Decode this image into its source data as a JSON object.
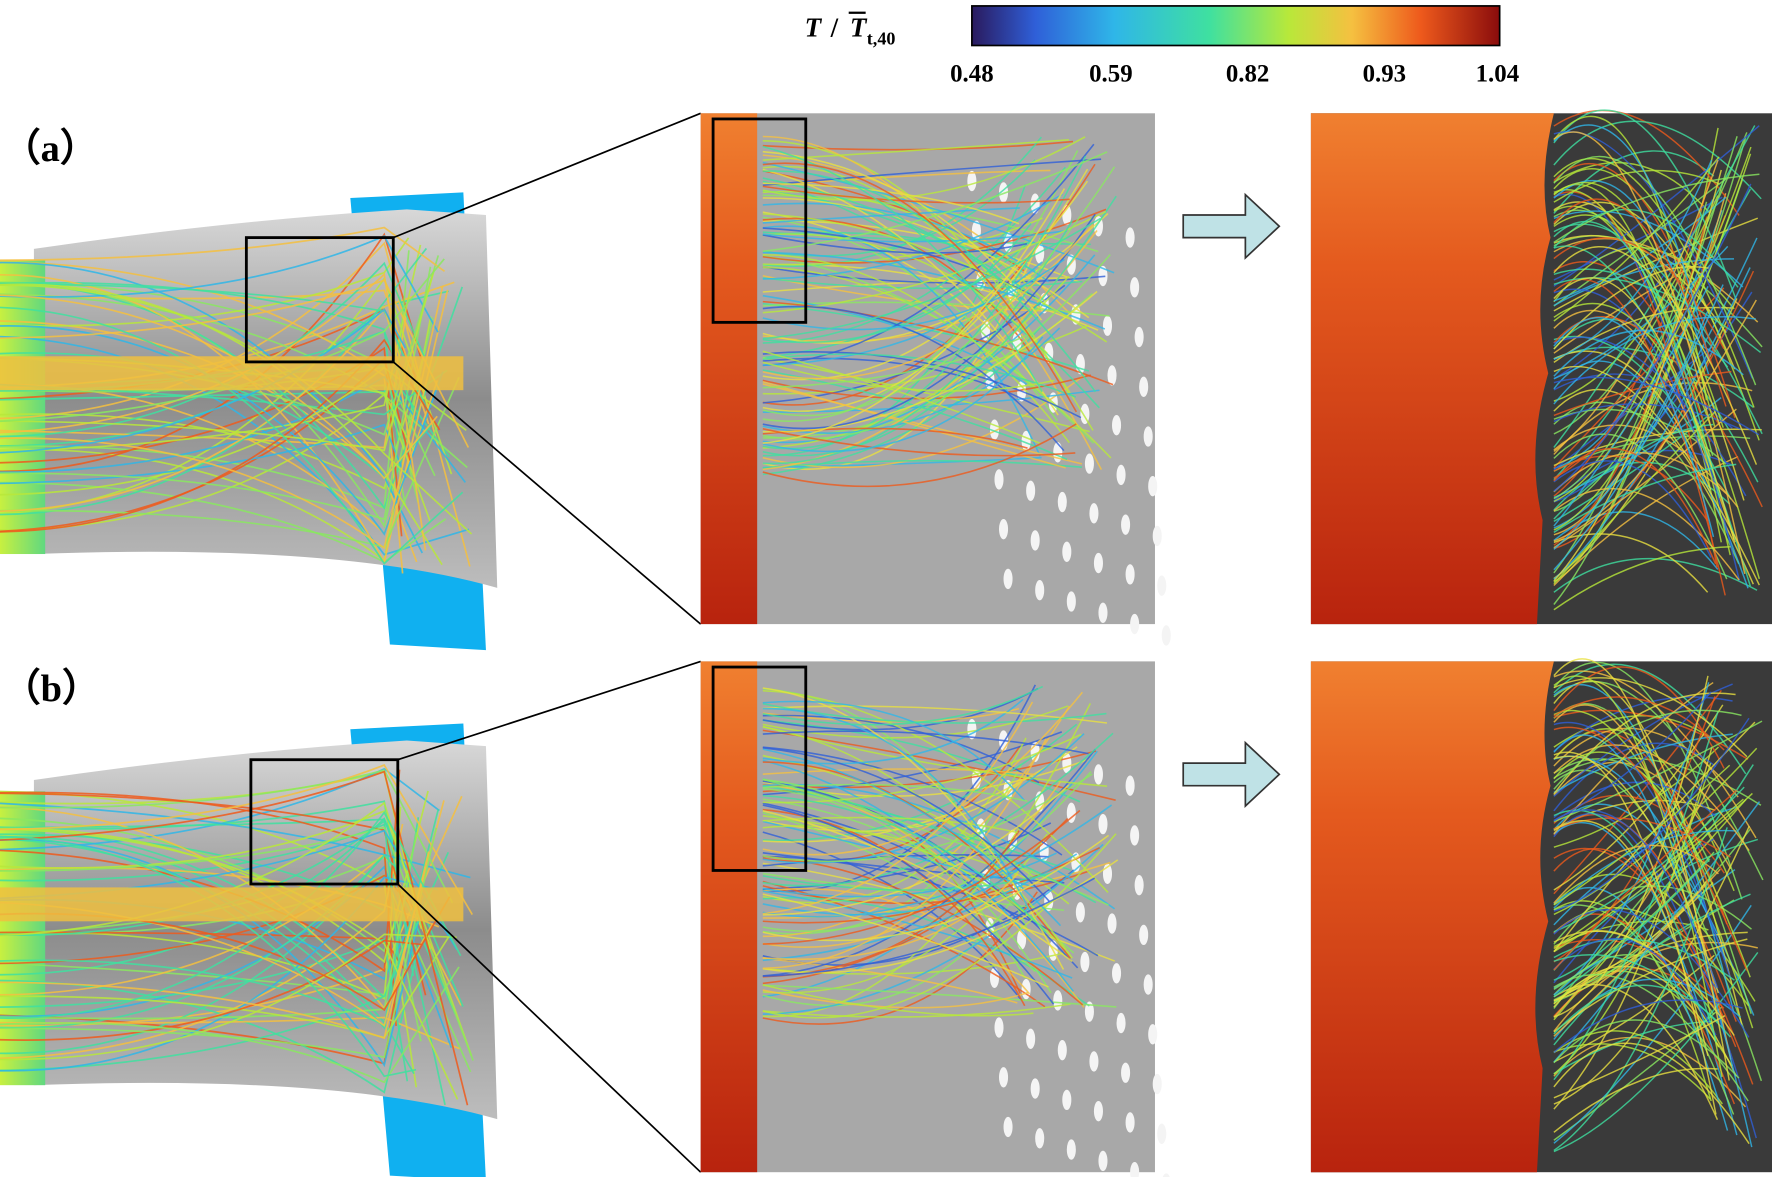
{
  "colorbar": {
    "label": {
      "symbol": "T",
      "divider": "/",
      "overline_symbol": "T",
      "subscript": "t,40"
    },
    "ticks": [
      0.48,
      0.59,
      0.82,
      0.93,
      1.04
    ]
  },
  "panels": [
    {
      "label": "（a）"
    },
    {
      "label": "（b）"
    }
  ]
}
